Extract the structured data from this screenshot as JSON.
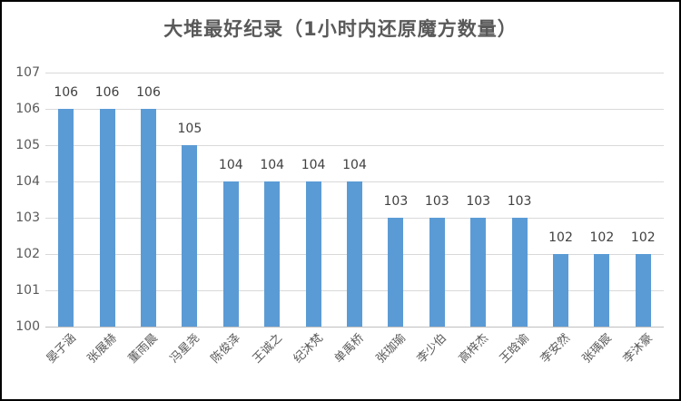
{
  "window": {
    "background_color": "#ffffff",
    "border_color": "#000000"
  },
  "chart_data": {
    "type": "bar",
    "title": "大堆最好纪录（1小时内还原魔方数量）",
    "categories": [
      "晏子涵",
      "张展赫",
      "董雨晨",
      "冯星尧",
      "陈俊泽",
      "王诚之",
      "纪沐梵",
      "单禹桥",
      "张珈瑜",
      "李少伯",
      "高梓杰",
      "王晗谕",
      "李安然",
      "张瑀宸",
      "李沐豪"
    ],
    "values": [
      106,
      106,
      106,
      105,
      104,
      104,
      104,
      104,
      103,
      103,
      103,
      103,
      102,
      102,
      102
    ],
    "xlabel": "",
    "ylabel": "",
    "ylim": [
      100,
      107
    ],
    "y_ticks": [
      100,
      101,
      102,
      103,
      104,
      105,
      106,
      107
    ],
    "grid": "horizontal",
    "legend": "none",
    "data_labels": true,
    "bar_color": "#5b9bd5",
    "gridline_color": "#d9d9d9",
    "axis_line_color": "#bfbfbf",
    "tick_label_color": "#595959",
    "value_label_color": "#404040",
    "title_color": "#595959"
  }
}
